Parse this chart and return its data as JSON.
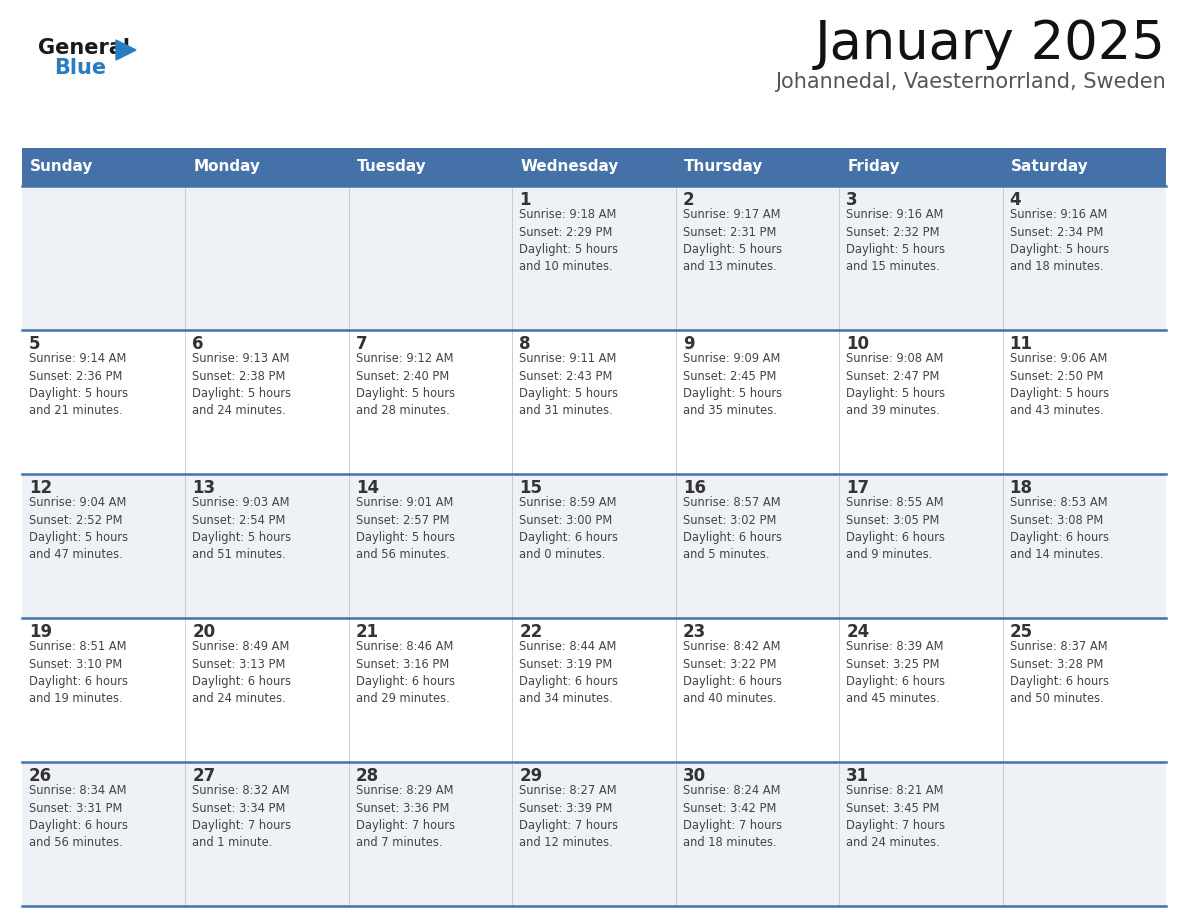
{
  "title": "January 2025",
  "subtitle": "Johannedal, Vaesternorrland, Sweden",
  "header_bg": "#4472a8",
  "header_text_color": "#ffffff",
  "row_bg_odd": "#eef2f7",
  "row_bg_even": "#ffffff",
  "day_names": [
    "Sunday",
    "Monday",
    "Tuesday",
    "Wednesday",
    "Thursday",
    "Friday",
    "Saturday"
  ],
  "cell_border_color": "#4472a8",
  "day_number_color": "#333333",
  "info_text_color": "#444444",
  "fig_width": 11.88,
  "fig_height": 9.18,
  "dpi": 100,
  "calendar": [
    [
      {
        "day": "",
        "info": ""
      },
      {
        "day": "",
        "info": ""
      },
      {
        "day": "",
        "info": ""
      },
      {
        "day": "1",
        "info": "Sunrise: 9:18 AM\nSunset: 2:29 PM\nDaylight: 5 hours\nand 10 minutes."
      },
      {
        "day": "2",
        "info": "Sunrise: 9:17 AM\nSunset: 2:31 PM\nDaylight: 5 hours\nand 13 minutes."
      },
      {
        "day": "3",
        "info": "Sunrise: 9:16 AM\nSunset: 2:32 PM\nDaylight: 5 hours\nand 15 minutes."
      },
      {
        "day": "4",
        "info": "Sunrise: 9:16 AM\nSunset: 2:34 PM\nDaylight: 5 hours\nand 18 minutes."
      }
    ],
    [
      {
        "day": "5",
        "info": "Sunrise: 9:14 AM\nSunset: 2:36 PM\nDaylight: 5 hours\nand 21 minutes."
      },
      {
        "day": "6",
        "info": "Sunrise: 9:13 AM\nSunset: 2:38 PM\nDaylight: 5 hours\nand 24 minutes."
      },
      {
        "day": "7",
        "info": "Sunrise: 9:12 AM\nSunset: 2:40 PM\nDaylight: 5 hours\nand 28 minutes."
      },
      {
        "day": "8",
        "info": "Sunrise: 9:11 AM\nSunset: 2:43 PM\nDaylight: 5 hours\nand 31 minutes."
      },
      {
        "day": "9",
        "info": "Sunrise: 9:09 AM\nSunset: 2:45 PM\nDaylight: 5 hours\nand 35 minutes."
      },
      {
        "day": "10",
        "info": "Sunrise: 9:08 AM\nSunset: 2:47 PM\nDaylight: 5 hours\nand 39 minutes."
      },
      {
        "day": "11",
        "info": "Sunrise: 9:06 AM\nSunset: 2:50 PM\nDaylight: 5 hours\nand 43 minutes."
      }
    ],
    [
      {
        "day": "12",
        "info": "Sunrise: 9:04 AM\nSunset: 2:52 PM\nDaylight: 5 hours\nand 47 minutes."
      },
      {
        "day": "13",
        "info": "Sunrise: 9:03 AM\nSunset: 2:54 PM\nDaylight: 5 hours\nand 51 minutes."
      },
      {
        "day": "14",
        "info": "Sunrise: 9:01 AM\nSunset: 2:57 PM\nDaylight: 5 hours\nand 56 minutes."
      },
      {
        "day": "15",
        "info": "Sunrise: 8:59 AM\nSunset: 3:00 PM\nDaylight: 6 hours\nand 0 minutes."
      },
      {
        "day": "16",
        "info": "Sunrise: 8:57 AM\nSunset: 3:02 PM\nDaylight: 6 hours\nand 5 minutes."
      },
      {
        "day": "17",
        "info": "Sunrise: 8:55 AM\nSunset: 3:05 PM\nDaylight: 6 hours\nand 9 minutes."
      },
      {
        "day": "18",
        "info": "Sunrise: 8:53 AM\nSunset: 3:08 PM\nDaylight: 6 hours\nand 14 minutes."
      }
    ],
    [
      {
        "day": "19",
        "info": "Sunrise: 8:51 AM\nSunset: 3:10 PM\nDaylight: 6 hours\nand 19 minutes."
      },
      {
        "day": "20",
        "info": "Sunrise: 8:49 AM\nSunset: 3:13 PM\nDaylight: 6 hours\nand 24 minutes."
      },
      {
        "day": "21",
        "info": "Sunrise: 8:46 AM\nSunset: 3:16 PM\nDaylight: 6 hours\nand 29 minutes."
      },
      {
        "day": "22",
        "info": "Sunrise: 8:44 AM\nSunset: 3:19 PM\nDaylight: 6 hours\nand 34 minutes."
      },
      {
        "day": "23",
        "info": "Sunrise: 8:42 AM\nSunset: 3:22 PM\nDaylight: 6 hours\nand 40 minutes."
      },
      {
        "day": "24",
        "info": "Sunrise: 8:39 AM\nSunset: 3:25 PM\nDaylight: 6 hours\nand 45 minutes."
      },
      {
        "day": "25",
        "info": "Sunrise: 8:37 AM\nSunset: 3:28 PM\nDaylight: 6 hours\nand 50 minutes."
      }
    ],
    [
      {
        "day": "26",
        "info": "Sunrise: 8:34 AM\nSunset: 3:31 PM\nDaylight: 6 hours\nand 56 minutes."
      },
      {
        "day": "27",
        "info": "Sunrise: 8:32 AM\nSunset: 3:34 PM\nDaylight: 7 hours\nand 1 minute."
      },
      {
        "day": "28",
        "info": "Sunrise: 8:29 AM\nSunset: 3:36 PM\nDaylight: 7 hours\nand 7 minutes."
      },
      {
        "day": "29",
        "info": "Sunrise: 8:27 AM\nSunset: 3:39 PM\nDaylight: 7 hours\nand 12 minutes."
      },
      {
        "day": "30",
        "info": "Sunrise: 8:24 AM\nSunset: 3:42 PM\nDaylight: 7 hours\nand 18 minutes."
      },
      {
        "day": "31",
        "info": "Sunrise: 8:21 AM\nSunset: 3:45 PM\nDaylight: 7 hours\nand 24 minutes."
      },
      {
        "day": "",
        "info": ""
      }
    ]
  ],
  "logo_color_general": "#1a1a1a",
  "logo_color_blue": "#2b7bbf",
  "logo_triangle_color": "#2b7bbf"
}
